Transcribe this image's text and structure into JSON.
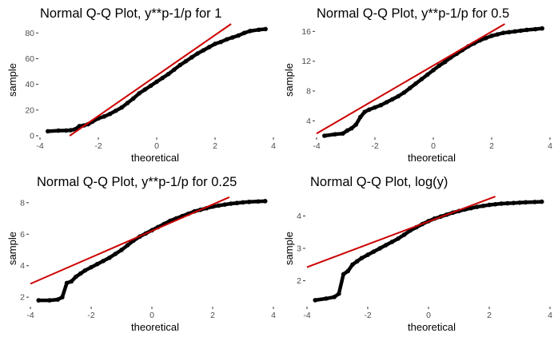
{
  "chart_data": [
    {
      "type": "scatter",
      "title": "Normal Q-Q Plot, y**p-1/p for 1",
      "xlabel": "theoretical",
      "ylabel": "sample",
      "xlim": [
        -4,
        4
      ],
      "ylim": [
        0,
        87
      ],
      "xticks": [
        -4,
        -2,
        0,
        2,
        4
      ],
      "yticks": [
        0,
        20,
        40,
        60,
        80
      ],
      "grid": false,
      "reference_line": {
        "color": "#cc0000",
        "x": [
          -2.98,
          2.55
        ],
        "y": [
          0,
          87
        ]
      },
      "series": [
        {
          "color": "#000000",
          "points": [
            [
              -3.73,
              3.5
            ],
            [
              -3.37,
              4.0
            ],
            [
              -3.1,
              4.1
            ],
            [
              -2.95,
              4.3
            ],
            [
              -2.8,
              5.0
            ],
            [
              -2.65,
              7.5
            ],
            [
              -2.5,
              8.0
            ],
            [
              -2.35,
              9.0
            ],
            [
              -2.2,
              11.0
            ],
            [
              -2.0,
              13.5
            ],
            [
              -1.8,
              15.0
            ],
            [
              -1.6,
              17.0
            ],
            [
              -1.4,
              19.5
            ],
            [
              -1.2,
              22.0
            ],
            [
              -1.0,
              25.5
            ],
            [
              -0.8,
              29.0
            ],
            [
              -0.6,
              33.0
            ],
            [
              -0.4,
              36.0
            ],
            [
              -0.2,
              39.0
            ],
            [
              0.0,
              42.0
            ],
            [
              0.2,
              45.0
            ],
            [
              0.4,
              48.0
            ],
            [
              0.6,
              51.5
            ],
            [
              0.8,
              55.0
            ],
            [
              1.0,
              58.0
            ],
            [
              1.2,
              61.0
            ],
            [
              1.4,
              64.0
            ],
            [
              1.6,
              66.5
            ],
            [
              1.8,
              69.0
            ],
            [
              2.0,
              71.5
            ],
            [
              2.2,
              73.0
            ],
            [
              2.4,
              75.0
            ],
            [
              2.6,
              76.5
            ],
            [
              2.8,
              78.0
            ],
            [
              3.0,
              80.0
            ],
            [
              3.2,
              81.5
            ],
            [
              3.5,
              82.5
            ],
            [
              3.73,
              83.0
            ]
          ]
        }
      ]
    },
    {
      "type": "scatter",
      "title": "Normal Q-Q Plot, y**p-1/p for 0.5",
      "xlabel": "theoretical",
      "ylabel": "sample",
      "xlim": [
        -4,
        4
      ],
      "ylim": [
        2,
        17
      ],
      "xticks": [
        -4,
        -2,
        0,
        2,
        4
      ],
      "yticks": [
        4,
        8,
        12,
        16
      ],
      "grid": false,
      "reference_line": {
        "color": "#cc0000",
        "x": [
          -4.0,
          2.45
        ],
        "y": [
          2.3,
          17.0
        ]
      },
      "series": [
        {
          "color": "#000000",
          "points": [
            [
              -3.73,
              2.0
            ],
            [
              -3.37,
              2.2
            ],
            [
              -3.1,
              2.3
            ],
            [
              -2.95,
              2.7
            ],
            [
              -2.8,
              3.0
            ],
            [
              -2.65,
              3.5
            ],
            [
              -2.5,
              4.5
            ],
            [
              -2.35,
              5.2
            ],
            [
              -2.2,
              5.5
            ],
            [
              -2.0,
              5.8
            ],
            [
              -1.8,
              6.1
            ],
            [
              -1.6,
              6.5
            ],
            [
              -1.4,
              6.9
            ],
            [
              -1.2,
              7.3
            ],
            [
              -1.0,
              7.8
            ],
            [
              -0.8,
              8.4
            ],
            [
              -0.6,
              9.0
            ],
            [
              -0.4,
              9.6
            ],
            [
              -0.2,
              10.2
            ],
            [
              0.0,
              10.8
            ],
            [
              0.2,
              11.4
            ],
            [
              0.4,
              11.9
            ],
            [
              0.6,
              12.5
            ],
            [
              0.8,
              13.0
            ],
            [
              1.0,
              13.5
            ],
            [
              1.2,
              14.0
            ],
            [
              1.4,
              14.4
            ],
            [
              1.6,
              14.8
            ],
            [
              1.8,
              15.1
            ],
            [
              2.0,
              15.4
            ],
            [
              2.2,
              15.6
            ],
            [
              2.4,
              15.8
            ],
            [
              2.6,
              15.9
            ],
            [
              2.8,
              16.0
            ],
            [
              3.0,
              16.1
            ],
            [
              3.2,
              16.2
            ],
            [
              3.5,
              16.3
            ],
            [
              3.73,
              16.4
            ]
          ]
        }
      ]
    },
    {
      "type": "scatter",
      "title": "Normal Q-Q Plot, y**p-1/p for 0.25",
      "xlabel": "theoretical",
      "ylabel": "sample",
      "xlim": [
        -4,
        4
      ],
      "ylim": [
        1.5,
        8.6
      ],
      "xticks": [
        -4,
        -2,
        0,
        2,
        4
      ],
      "yticks": [
        2,
        4,
        6,
        8
      ],
      "grid": false,
      "reference_line": {
        "color": "#cc0000",
        "x": [
          -4.0,
          2.55
        ],
        "y": [
          2.85,
          8.35
        ]
      },
      "series": [
        {
          "color": "#000000",
          "points": [
            [
              -3.73,
              1.8
            ],
            [
              -3.37,
              1.8
            ],
            [
              -3.1,
              1.85
            ],
            [
              -2.95,
              2.0
            ],
            [
              -2.8,
              2.9
            ],
            [
              -2.65,
              3.0
            ],
            [
              -2.5,
              3.3
            ],
            [
              -2.35,
              3.5
            ],
            [
              -2.2,
              3.7
            ],
            [
              -2.0,
              3.9
            ],
            [
              -1.8,
              4.1
            ],
            [
              -1.6,
              4.3
            ],
            [
              -1.4,
              4.5
            ],
            [
              -1.2,
              4.75
            ],
            [
              -1.0,
              5.0
            ],
            [
              -0.8,
              5.3
            ],
            [
              -0.6,
              5.6
            ],
            [
              -0.4,
              5.85
            ],
            [
              -0.2,
              6.05
            ],
            [
              0.0,
              6.25
            ],
            [
              0.2,
              6.45
            ],
            [
              0.4,
              6.65
            ],
            [
              0.6,
              6.85
            ],
            [
              0.8,
              7.0
            ],
            [
              1.0,
              7.15
            ],
            [
              1.2,
              7.3
            ],
            [
              1.4,
              7.45
            ],
            [
              1.6,
              7.55
            ],
            [
              1.8,
              7.65
            ],
            [
              2.0,
              7.75
            ],
            [
              2.2,
              7.82
            ],
            [
              2.4,
              7.88
            ],
            [
              2.6,
              7.94
            ],
            [
              2.8,
              7.98
            ],
            [
              3.0,
              8.02
            ],
            [
              3.2,
              8.05
            ],
            [
              3.5,
              8.08
            ],
            [
              3.73,
              8.1
            ]
          ]
        }
      ]
    },
    {
      "type": "scatter",
      "title": "Normal Q-Q Plot, log(y)",
      "xlabel": "theoretical",
      "ylabel": "sample",
      "xlim": [
        -4,
        4
      ],
      "ylim": [
        1.25,
        4.7
      ],
      "xticks": [
        -4,
        -2,
        0,
        2,
        4
      ],
      "yticks": [
        2,
        3,
        4
      ],
      "grid": false,
      "reference_line": {
        "color": "#cc0000",
        "x": [
          -4.0,
          2.2
        ],
        "y": [
          2.42,
          4.6
        ]
      },
      "series": [
        {
          "color": "#000000",
          "points": [
            [
              -3.73,
              1.4
            ],
            [
              -3.37,
              1.45
            ],
            [
              -3.1,
              1.5
            ],
            [
              -2.95,
              1.6
            ],
            [
              -2.8,
              2.2
            ],
            [
              -2.65,
              2.3
            ],
            [
              -2.5,
              2.5
            ],
            [
              -2.35,
              2.6
            ],
            [
              -2.2,
              2.7
            ],
            [
              -2.0,
              2.8
            ],
            [
              -1.8,
              2.9
            ],
            [
              -1.6,
              3.0
            ],
            [
              -1.4,
              3.1
            ],
            [
              -1.2,
              3.2
            ],
            [
              -1.0,
              3.3
            ],
            [
              -0.8,
              3.42
            ],
            [
              -0.6,
              3.55
            ],
            [
              -0.4,
              3.65
            ],
            [
              -0.2,
              3.75
            ],
            [
              0.0,
              3.84
            ],
            [
              0.2,
              3.92
            ],
            [
              0.4,
              3.98
            ],
            [
              0.6,
              4.04
            ],
            [
              0.8,
              4.1
            ],
            [
              1.0,
              4.15
            ],
            [
              1.2,
              4.2
            ],
            [
              1.4,
              4.24
            ],
            [
              1.6,
              4.28
            ],
            [
              1.8,
              4.31
            ],
            [
              2.0,
              4.34
            ],
            [
              2.2,
              4.36
            ],
            [
              2.4,
              4.38
            ],
            [
              2.6,
              4.39
            ],
            [
              2.8,
              4.4
            ],
            [
              3.0,
              4.41
            ],
            [
              3.2,
              4.42
            ],
            [
              3.5,
              4.43
            ],
            [
              3.73,
              4.44
            ]
          ]
        }
      ]
    }
  ]
}
